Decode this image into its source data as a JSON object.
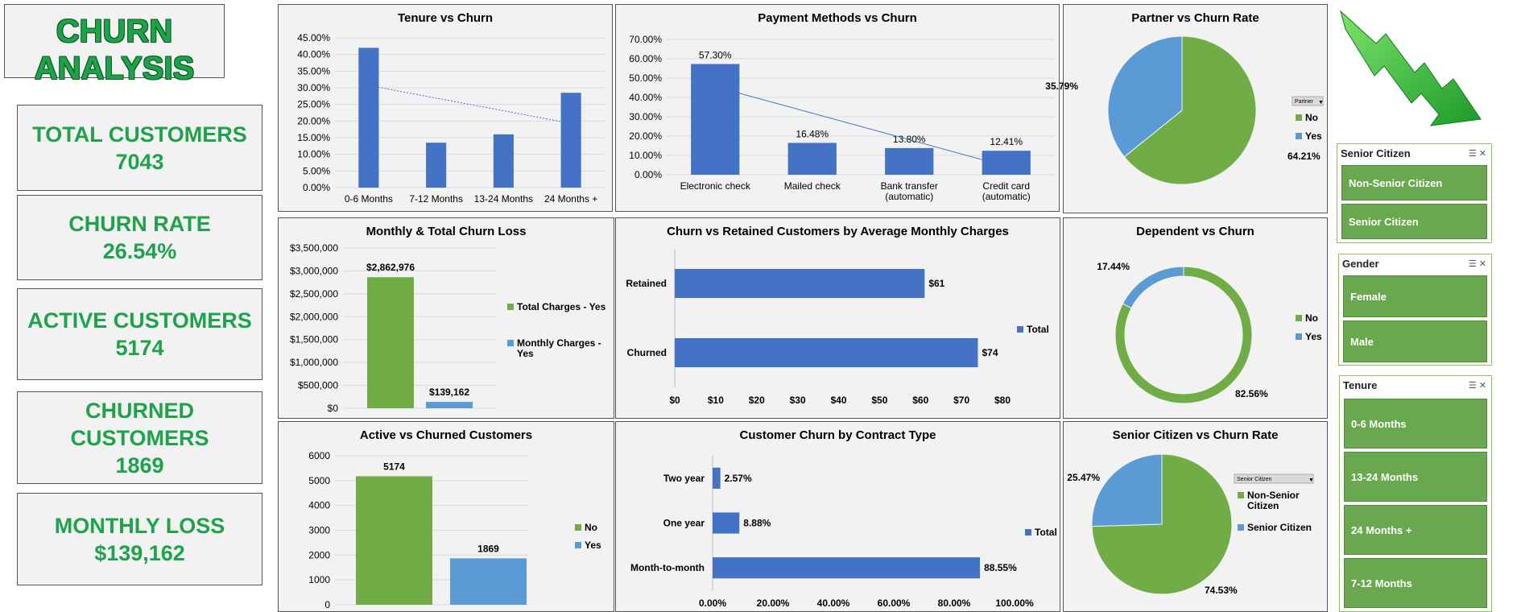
{
  "title_lines": [
    "CHURN",
    "ANALYSIS"
  ],
  "kpis": [
    {
      "label": "TOTAL CUSTOMERS",
      "value": "7043"
    },
    {
      "label": "CHURN RATE",
      "value": "26.54%"
    },
    {
      "label": "ACTIVE CUSTOMERS",
      "value": "5174"
    },
    {
      "label": "CHURNED CUSTOMERS",
      "value": "1869"
    },
    {
      "label": "MONTHLY LOSS",
      "value": "$139,162"
    }
  ],
  "colors": {
    "blue": "#4472c4",
    "green": "#70ad47",
    "lightblue": "#5b9bd5",
    "kpi_green": "#1ea34a"
  },
  "icons": {
    "trend": "down-arrow-icon",
    "multiselect": "multi-select-icon",
    "clear_filter": "clear-filter-icon"
  },
  "slicers": {
    "senior": {
      "title": "Senior Citizen",
      "items": [
        "Non-Senior Citizen",
        "Senior Citizen"
      ]
    },
    "gender": {
      "title": "Gender",
      "items": [
        "Female",
        "Male"
      ]
    },
    "tenure": {
      "title": "Tenure",
      "items": [
        "0-6 Months",
        "13-24 Months",
        "24 Months +",
        "7-12 Months"
      ]
    }
  },
  "chart_data": [
    {
      "id": "tenure",
      "type": "bar",
      "title": "Tenure vs Churn",
      "categories": [
        "0-6 Months",
        "7-12 Months",
        "13-24 Months",
        "24 Months +"
      ],
      "values": [
        0.42,
        0.135,
        0.16,
        0.285
      ],
      "yticks": [
        "0.00%",
        "5.00%",
        "10.00%",
        "15.00%",
        "20.00%",
        "25.00%",
        "30.00%",
        "35.00%",
        "40.00%",
        "45.00%"
      ],
      "ylim": [
        0,
        0.45
      ],
      "trendline": true
    },
    {
      "id": "payment",
      "type": "bar",
      "title": "Payment Methods vs Churn",
      "categories": [
        [
          "Electronic check"
        ],
        [
          "Mailed check"
        ],
        [
          "Bank transfer",
          "(automatic)"
        ],
        [
          "Credit card",
          "(automatic)"
        ]
      ],
      "values": [
        0.573,
        0.1648,
        0.138,
        0.1241
      ],
      "labels": [
        "57.30%",
        "16.48%",
        "13.80%",
        "12.41%"
      ],
      "yticks": [
        "0.00%",
        "10.00%",
        "20.00%",
        "30.00%",
        "40.00%",
        "50.00%",
        "60.00%",
        "70.00%"
      ],
      "ylim": [
        0,
        0.7
      ],
      "trendline": true
    },
    {
      "id": "partner",
      "type": "pie",
      "title": "Partner vs Churn Rate",
      "slices": [
        {
          "name": "No",
          "value": 64.21,
          "label": "64.21%"
        },
        {
          "name": "Yes",
          "value": 35.79,
          "label": "35.79%"
        }
      ],
      "legend_title": "Partner",
      "legend": "right"
    },
    {
      "id": "loss",
      "type": "bar",
      "title": "Monthly & Total Churn Loss",
      "series": [
        {
          "name": "Total Charges - Yes",
          "values": [
            2862976
          ],
          "label": "$2,862,976"
        },
        {
          "name": "Monthly Charges - Yes",
          "values": [
            139162
          ],
          "label": "$139,162"
        }
      ],
      "legend_names": [
        [
          "Total Charges - Yes"
        ],
        [
          "Monthly Charges -",
          "Yes"
        ]
      ],
      "yticks": [
        "$0",
        "$500,000",
        "$1,000,000",
        "$1,500,000",
        "$2,000,000",
        "$2,500,000",
        "$3,000,000",
        "$3,500,000"
      ],
      "ylim": [
        0,
        3500000
      ]
    },
    {
      "id": "avgcharges",
      "type": "bar",
      "orientation": "horizontal",
      "title": "Churn vs Retained Customers by Average Monthly Charges",
      "categories": [
        "Retained",
        "Churned"
      ],
      "values": [
        61,
        74
      ],
      "labels": [
        "$61",
        "$74"
      ],
      "xticks": [
        "$0",
        "$10",
        "$20",
        "$30",
        "$40",
        "$50",
        "$60",
        "$70",
        "$80"
      ],
      "xlim": [
        0,
        80
      ],
      "legend": [
        "Total"
      ]
    },
    {
      "id": "dependent",
      "type": "pie",
      "donut": true,
      "title": "Dependent vs Churn",
      "slices": [
        {
          "name": "No",
          "value": 82.56,
          "label": "82.56%"
        },
        {
          "name": "Yes",
          "value": 17.44,
          "label": "17.44%"
        }
      ],
      "legend": "right"
    },
    {
      "id": "active",
      "type": "bar",
      "title": "Active vs Churned Customers",
      "series": [
        {
          "name": "No",
          "values": [
            5174
          ],
          "label": "5174"
        },
        {
          "name": "Yes",
          "values": [
            1869
          ],
          "label": "1869"
        }
      ],
      "yticks": [
        "0",
        "1000",
        "2000",
        "3000",
        "4000",
        "5000",
        "6000"
      ],
      "ylim": [
        0,
        6000
      ]
    },
    {
      "id": "contract",
      "type": "bar",
      "orientation": "horizontal",
      "title": "Customer Churn by Contract Type",
      "categories": [
        "Two year",
        "One year",
        "Month-to-month"
      ],
      "values": [
        2.57,
        8.88,
        88.55
      ],
      "labels": [
        "2.57%",
        "8.88%",
        "88.55%"
      ],
      "xticks": [
        "0.00%",
        "20.00%",
        "40.00%",
        "60.00%",
        "80.00%",
        "100.00%"
      ],
      "xlim": [
        0,
        100
      ],
      "legend": [
        "Total"
      ]
    },
    {
      "id": "senior",
      "type": "pie",
      "title": "Senior Citizen vs Churn Rate",
      "slices": [
        {
          "name": "Non-Senior Citizen",
          "value": 74.53,
          "label": "74.53%"
        },
        {
          "name": "Senior Citizen",
          "value": 25.47,
          "label": "25.47%"
        }
      ],
      "legend_names": [
        [
          "Non-Senior",
          "Citizen"
        ],
        [
          "Senior Citizen"
        ]
      ],
      "legend_title": "Senior Citizen",
      "legend": "right"
    }
  ]
}
